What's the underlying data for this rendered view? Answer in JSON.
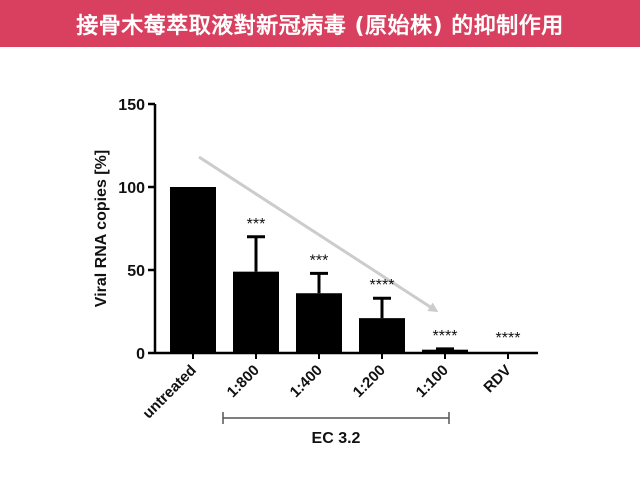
{
  "banner": {
    "title": "接骨木莓萃取液對新冠病毒 (原始株) 的抑制作用",
    "color": "#d93f5e"
  },
  "chart_data": {
    "type": "bar",
    "title": "",
    "ylabel": "Viral RNA copies [%]",
    "xlabel": "",
    "ylim": [
      0,
      150
    ],
    "yticks": [
      0,
      50,
      100,
      150
    ],
    "categories": [
      "untreated",
      "1:800",
      "1:400",
      "1:200",
      "1:100",
      "RDV"
    ],
    "values": [
      100,
      49,
      36,
      21,
      2,
      0
    ],
    "error_plus": [
      0,
      21,
      12,
      12,
      0.5,
      0
    ],
    "significance": [
      "",
      "***",
      "***",
      "****",
      "****",
      "****"
    ],
    "group_bracket": {
      "label": "EC 3.2",
      "from_category": "1:800",
      "to_category": "1:100"
    },
    "trend_arrow": {
      "color": "#cccccc",
      "from_category": "untreated",
      "to_category": "1:100"
    },
    "bar_color": "#000000",
    "grid": false,
    "legend": "none"
  }
}
